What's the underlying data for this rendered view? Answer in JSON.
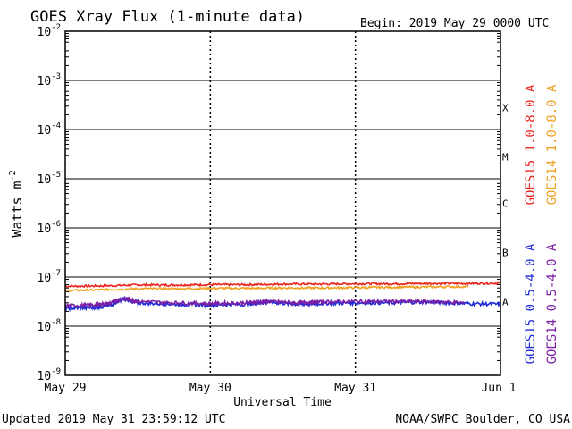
{
  "chart_data": {
    "type": "line",
    "title": "GOES Xray Flux (1-minute data)",
    "begin_label": "Begin:  2019 May 29 0000 UTC",
    "xlabel": "Universal Time",
    "ylabel": "Watts m",
    "ylabel_sup": "-2",
    "x_ticks": [
      "May 29",
      "May 30",
      "May 31",
      "Jun 1"
    ],
    "xlim": [
      0,
      3
    ],
    "ylim_exp": [
      -9,
      -2
    ],
    "y_scale": "log",
    "y_ticks": [
      {
        "exp": -2,
        "label": "10",
        "sup": "-2"
      },
      {
        "exp": -3,
        "label": "10",
        "sup": "-3"
      },
      {
        "exp": -4,
        "label": "10",
        "sup": "-4"
      },
      {
        "exp": -5,
        "label": "10",
        "sup": "-5"
      },
      {
        "exp": -6,
        "label": "10",
        "sup": "-6"
      },
      {
        "exp": -7,
        "label": "10",
        "sup": "-7"
      },
      {
        "exp": -8,
        "label": "10",
        "sup": "-8"
      },
      {
        "exp": -9,
        "label": "10",
        "sup": "-9"
      }
    ],
    "flare_classes": [
      {
        "label": "X",
        "exp": -3.55
      },
      {
        "label": "M",
        "exp": -4.55
      },
      {
        "label": "C",
        "exp": -5.5
      },
      {
        "label": "B",
        "exp": -6.5
      },
      {
        "label": "A",
        "exp": -7.5
      }
    ],
    "legend_right": [
      {
        "label": "GOES15 1.0-8.0 A",
        "color": "#e8251f"
      },
      {
        "label": "GOES14 1.0-8.0 A",
        "color": "#f0a020"
      }
    ],
    "legend_right_lower": [
      {
        "label": "GOES15 0.5-4.0 A",
        "color": "#1e2bd6"
      },
      {
        "label": "GOES14 0.5-4.0 A",
        "color": "#7a1fa6"
      }
    ],
    "series": [
      {
        "name": "GOES15 1.0-8.0 A",
        "color": "#e8251f",
        "x": [
          0,
          0.25,
          0.5,
          0.75,
          1.0,
          1.25,
          1.5,
          1.75,
          2.0,
          2.25,
          2.5,
          2.75,
          3.0
        ],
        "y": [
          6.5e-08,
          6.6e-08,
          6.9e-08,
          6.9e-08,
          7e-08,
          7e-08,
          7.2e-08,
          7.2e-08,
          7.3e-08,
          7.3e-08,
          7.4e-08,
          7.4e-08,
          7.5e-08
        ]
      },
      {
        "name": "GOES14 1.0-8.0 A",
        "color": "#f0a020",
        "x": [
          0,
          0.25,
          0.5,
          0.75,
          1.0,
          1.25,
          1.5,
          1.75,
          2.0,
          2.25,
          2.5,
          2.78
        ],
        "y": [
          5.3e-08,
          5.5e-08,
          5.8e-08,
          5.8e-08,
          5.9e-08,
          5.9e-08,
          6e-08,
          6e-08,
          6.1e-08,
          6.2e-08,
          6.3e-08,
          6.4e-08
        ]
      },
      {
        "name": "GOES15 0.5-4.0 A",
        "color": "#1e2bd6",
        "x": [
          0,
          0.2,
          0.3,
          0.4,
          0.5,
          0.75,
          1.0,
          1.25,
          1.4,
          1.6,
          1.75,
          2.0,
          2.25,
          2.5,
          2.75,
          3.0
        ],
        "y": [
          2.3e-08,
          2.4e-08,
          2.6e-08,
          3.6e-08,
          3e-08,
          2.8e-08,
          2.7e-08,
          2.8e-08,
          3.1e-08,
          2.8e-08,
          2.9e-08,
          3e-08,
          3e-08,
          3.1e-08,
          2.9e-08,
          2.8e-08
        ]
      },
      {
        "name": "GOES14 0.5-4.0 A",
        "color": "#7a1fa6",
        "x": [
          0,
          0.2,
          0.3,
          0.4,
          0.5,
          0.75,
          1.0,
          1.25,
          1.4,
          1.6,
          1.75,
          2.0,
          2.25,
          2.5,
          2.75
        ],
        "y": [
          2.6e-08,
          2.7e-08,
          2.9e-08,
          3.7e-08,
          3.2e-08,
          3e-08,
          2.9e-08,
          3e-08,
          3.2e-08,
          3e-08,
          3.1e-08,
          3.2e-08,
          3.2e-08,
          3.2e-08,
          3e-08
        ]
      }
    ],
    "grid": true
  },
  "footer": {
    "updated": "Updated 2019 May 31 23:59:12 UTC",
    "credit": "NOAA/SWPC Boulder, CO USA"
  }
}
